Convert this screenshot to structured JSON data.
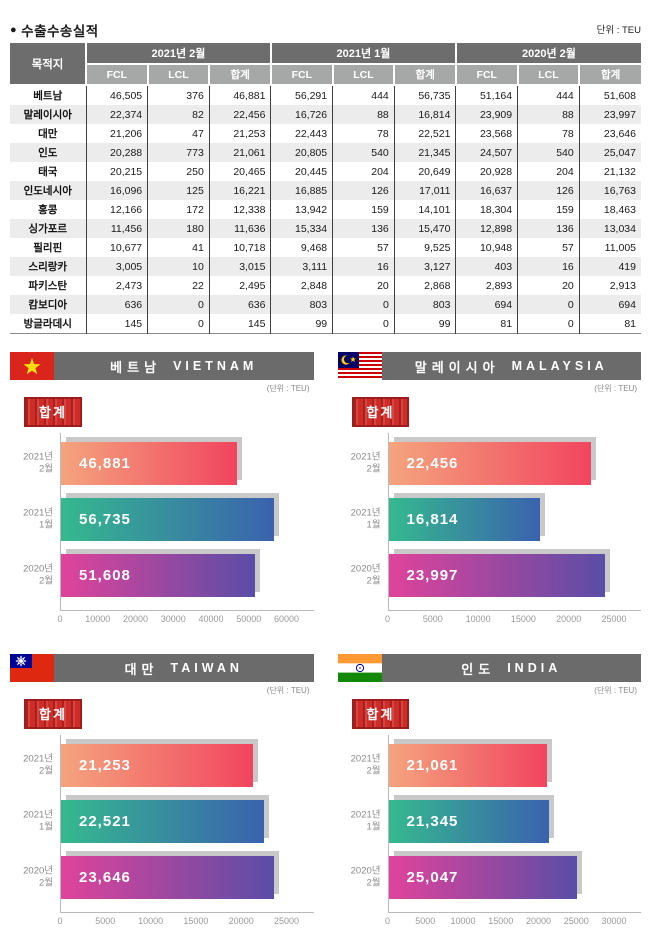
{
  "page": {
    "bullet": "●",
    "title": "수출수송실적",
    "unit_note": "단위 : TEU"
  },
  "table": {
    "destination_header": "목적지",
    "group_headers": [
      "2021년 2월",
      "2021년 1월",
      "2020년 2월"
    ],
    "sub_headers": [
      "FCL",
      "LCL",
      "합계"
    ],
    "rows": [
      {
        "destination": "베트남",
        "values": [
          "46,505",
          "376",
          "46,881",
          "56,291",
          "444",
          "56,735",
          "51,164",
          "444",
          "51,608"
        ]
      },
      {
        "destination": "말레이시아",
        "values": [
          "22,374",
          "82",
          "22,456",
          "16,726",
          "88",
          "16,814",
          "23,909",
          "88",
          "23,997"
        ]
      },
      {
        "destination": "대만",
        "values": [
          "21,206",
          "47",
          "21,253",
          "22,443",
          "78",
          "22,521",
          "23,568",
          "78",
          "23,646"
        ]
      },
      {
        "destination": "인도",
        "values": [
          "20,288",
          "773",
          "21,061",
          "20,805",
          "540",
          "21,345",
          "24,507",
          "540",
          "25,047"
        ]
      },
      {
        "destination": "태국",
        "values": [
          "20,215",
          "250",
          "20,465",
          "20,445",
          "204",
          "20,649",
          "20,928",
          "204",
          "21,132"
        ]
      },
      {
        "destination": "인도네시아",
        "values": [
          "16,096",
          "125",
          "16,221",
          "16,885",
          "126",
          "17,011",
          "16,637",
          "126",
          "16,763"
        ]
      },
      {
        "destination": "홍콩",
        "values": [
          "12,166",
          "172",
          "12,338",
          "13,942",
          "159",
          "14,101",
          "18,304",
          "159",
          "18,463"
        ]
      },
      {
        "destination": "싱가포르",
        "values": [
          "11,456",
          "180",
          "11,636",
          "15,334",
          "136",
          "15,470",
          "12,898",
          "136",
          "13,034"
        ]
      },
      {
        "destination": "필리핀",
        "values": [
          "10,677",
          "41",
          "10,718",
          "9,468",
          "57",
          "9,525",
          "10,948",
          "57",
          "11,005"
        ]
      },
      {
        "destination": "스리랑카",
        "values": [
          "3,005",
          "10",
          "3,015",
          "3,111",
          "16",
          "3,127",
          "403",
          "16",
          "419"
        ]
      },
      {
        "destination": "파키스탄",
        "values": [
          "2,473",
          "22",
          "2,495",
          "2,848",
          "20",
          "2,868",
          "2,893",
          "20",
          "2,913"
        ]
      },
      {
        "destination": "캄보디아",
        "values": [
          "636",
          "0",
          "636",
          "803",
          "0",
          "803",
          "694",
          "0",
          "694"
        ]
      },
      {
        "destination": "방글라데시",
        "values": [
          "145",
          "0",
          "145",
          "99",
          "0",
          "99",
          "81",
          "0",
          "81"
        ]
      }
    ]
  },
  "charts": [
    {
      "id": "vietnam",
      "title_ko": "베트남",
      "title_en": "VIETNAM",
      "flag_icon": "vietnam-flag-icon",
      "unit_note": "(단위 : TEU)",
      "legend_label": "합계",
      "categories": [
        [
          "2021년",
          "2월"
        ],
        [
          "2021년",
          "1월"
        ],
        [
          "2020년",
          "2월"
        ]
      ],
      "values": [
        46881,
        56735,
        51608
      ],
      "value_labels": [
        "46,881",
        "56,735",
        "51,608"
      ],
      "xmax": 60000,
      "tick_labels": [
        "0",
        "10000",
        "20000",
        "30000",
        "40000",
        "50000",
        "60000"
      ]
    },
    {
      "id": "malaysia",
      "title_ko": "말레이시아",
      "title_en": "MALAYSIA",
      "flag_icon": "malaysia-flag-icon",
      "unit_note": "(단위 : TEU)",
      "legend_label": "합계",
      "categories": [
        [
          "2021년",
          "2월"
        ],
        [
          "2021년",
          "1월"
        ],
        [
          "2020년",
          "2월"
        ]
      ],
      "values": [
        22456,
        16814,
        23997
      ],
      "value_labels": [
        "22,456",
        "16,814",
        "23,997"
      ],
      "xmax": 25000,
      "tick_labels": [
        "0",
        "5000",
        "10000",
        "15000",
        "20000",
        "25000"
      ]
    },
    {
      "id": "taiwan",
      "title_ko": "대만",
      "title_en": "TAIWAN",
      "flag_icon": "taiwan-flag-icon",
      "unit_note": "(단위 : TEU)",
      "legend_label": "합계",
      "categories": [
        [
          "2021년",
          "2월"
        ],
        [
          "2021년",
          "1월"
        ],
        [
          "2020년",
          "2월"
        ]
      ],
      "values": [
        21253,
        22521,
        23646
      ],
      "value_labels": [
        "21,253",
        "22,521",
        "23,646"
      ],
      "xmax": 25000,
      "tick_labels": [
        "0",
        "5000",
        "10000",
        "15000",
        "20000",
        "25000"
      ]
    },
    {
      "id": "india",
      "title_ko": "인도",
      "title_en": "INDIA",
      "flag_icon": "india-flag-icon",
      "unit_note": "(단위 : TEU)",
      "legend_label": "합계",
      "categories": [
        [
          "2021년",
          "2월"
        ],
        [
          "2021년",
          "1월"
        ],
        [
          "2020년",
          "2월"
        ]
      ],
      "values": [
        21061,
        21345,
        25047
      ],
      "value_labels": [
        "21,061",
        "21,345",
        "25,047"
      ],
      "xmax": 30000,
      "tick_labels": [
        "0",
        "5000",
        "10000",
        "15000",
        "20000",
        "25000",
        "30000"
      ]
    }
  ],
  "colors": {
    "titlebar_bg": "#6b6b6b",
    "table_header_bg": "#6d6d6d",
    "table_subheader_bg": "#a6a7a7",
    "row_alt_bg": "#ececec",
    "badge_red": "#cf2b27",
    "badge_border": "#9e1d1a",
    "bar_shadow": "#c9c9c9",
    "bar_gradients": [
      [
        "#f4a47e",
        "#f1455f"
      ],
      [
        "#35b98e",
        "#3a62ae"
      ],
      [
        "#e0439b",
        "#5a4da6"
      ]
    ]
  },
  "chart_data": [
    {
      "type": "table",
      "title": "수출수송실적",
      "unit": "TEU",
      "columns": [
        "목적지",
        "2021년 2월 FCL",
        "2021년 2월 LCL",
        "2021년 2월 합계",
        "2021년 1월 FCL",
        "2021년 1월 LCL",
        "2021년 1월 합계",
        "2020년 2월 FCL",
        "2020년 2월 LCL",
        "2020년 2월 합계"
      ],
      "rows": [
        [
          "베트남",
          46505,
          376,
          46881,
          56291,
          444,
          56735,
          51164,
          444,
          51608
        ],
        [
          "말레이시아",
          22374,
          82,
          22456,
          16726,
          88,
          16814,
          23909,
          88,
          23997
        ],
        [
          "대만",
          21206,
          47,
          21253,
          22443,
          78,
          22521,
          23568,
          78,
          23646
        ],
        [
          "인도",
          20288,
          773,
          21061,
          20805,
          540,
          21345,
          24507,
          540,
          25047
        ],
        [
          "태국",
          20215,
          250,
          20465,
          20445,
          204,
          20649,
          20928,
          204,
          21132
        ],
        [
          "인도네시아",
          16096,
          125,
          16221,
          16885,
          126,
          17011,
          16637,
          126,
          16763
        ],
        [
          "홍콩",
          12166,
          172,
          12338,
          13942,
          159,
          14101,
          18304,
          159,
          18463
        ],
        [
          "싱가포르",
          11456,
          180,
          11636,
          15334,
          136,
          15470,
          12898,
          136,
          13034
        ],
        [
          "필리핀",
          10677,
          41,
          10718,
          9468,
          57,
          9525,
          10948,
          57,
          11005
        ],
        [
          "스리랑카",
          3005,
          10,
          3015,
          3111,
          16,
          3127,
          403,
          16,
          419
        ],
        [
          "파키스탄",
          2473,
          22,
          2495,
          2848,
          20,
          2868,
          2893,
          20,
          2913
        ],
        [
          "캄보디아",
          636,
          0,
          636,
          803,
          0,
          803,
          694,
          0,
          694
        ],
        [
          "방글라데시",
          145,
          0,
          145,
          99,
          0,
          99,
          81,
          0,
          81
        ]
      ]
    },
    {
      "type": "bar",
      "orientation": "horizontal",
      "title": "베트남 VIETNAM",
      "legend": "합계",
      "unit": "TEU",
      "categories": [
        "2021년 2월",
        "2021년 1월",
        "2020년 2월"
      ],
      "values": [
        46881,
        56735,
        51608
      ],
      "xlim": [
        0,
        60000
      ],
      "xticks": [
        0,
        10000,
        20000,
        30000,
        40000,
        50000,
        60000
      ]
    },
    {
      "type": "bar",
      "orientation": "horizontal",
      "title": "말레이시아 MALAYSIA",
      "legend": "합계",
      "unit": "TEU",
      "categories": [
        "2021년 2월",
        "2021년 1월",
        "2020년 2월"
      ],
      "values": [
        22456,
        16814,
        23997
      ],
      "xlim": [
        0,
        25000
      ],
      "xticks": [
        0,
        5000,
        10000,
        15000,
        20000,
        25000
      ]
    },
    {
      "type": "bar",
      "orientation": "horizontal",
      "title": "대만 TAIWAN",
      "legend": "합계",
      "unit": "TEU",
      "categories": [
        "2021년 2월",
        "2021년 1월",
        "2020년 2월"
      ],
      "values": [
        21253,
        22521,
        23646
      ],
      "xlim": [
        0,
        25000
      ],
      "xticks": [
        0,
        5000,
        10000,
        15000,
        20000,
        25000
      ]
    },
    {
      "type": "bar",
      "orientation": "horizontal",
      "title": "인도 INDIA",
      "legend": "합계",
      "unit": "TEU",
      "categories": [
        "2021년 2월",
        "2021년 1월",
        "2020년 2월"
      ],
      "values": [
        21061,
        21345,
        25047
      ],
      "xlim": [
        0,
        30000
      ],
      "xticks": [
        0,
        5000,
        10000,
        15000,
        20000,
        25000,
        30000
      ]
    }
  ]
}
